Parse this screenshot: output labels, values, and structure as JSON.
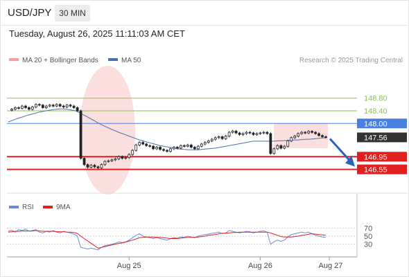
{
  "header": {
    "symbol": "USD/JPY",
    "timeframe": "30 MIN"
  },
  "datetime": "Tuesday, August 26, 2025 11:11:03 AM CET",
  "legend": {
    "ma_bb": "MA 20 + Bollinger Bands",
    "ma50": "MA 50"
  },
  "credit": "Research © 2025 Trading Central",
  "rsi_legend": {
    "rsi": "RSI",
    "ma": "9MA"
  },
  "colors": {
    "resistance": "#8bc34a",
    "pivot": "#4a7fe0",
    "support": "#e02020",
    "price": "#333333",
    "ma50": "#4a6fae",
    "bb": "#f4a0a0",
    "rsi": "#6a8ad8",
    "rsi_ma": "#e02020",
    "arrow": "#2a62b8"
  },
  "chart_data": [
    {
      "type": "line",
      "title": "",
      "ylim": [
        146.3,
        149.1
      ],
      "levels": [
        {
          "value": 148.8,
          "label": "148.80",
          "kind": "resistance"
        },
        {
          "value": 148.4,
          "label": "148.40",
          "kind": "resistance"
        },
        {
          "value": 148.0,
          "label": "148.00",
          "kind": "pivot"
        },
        {
          "value": 147.56,
          "label": "147.56",
          "kind": "last_price"
        },
        {
          "value": 146.95,
          "label": "146.95",
          "kind": "support"
        },
        {
          "value": 146.55,
          "label": "146.55",
          "kind": "support"
        }
      ],
      "x_ticks": [
        "Aug 25",
        "Aug 26",
        "Aug 27"
      ],
      "x_tick_index": [
        35,
        73,
        93
      ],
      "n_bars": 93,
      "close": [
        148.42,
        148.45,
        148.5,
        148.48,
        148.55,
        148.5,
        148.45,
        148.52,
        148.6,
        148.58,
        148.5,
        148.55,
        148.58,
        148.55,
        148.6,
        148.55,
        148.52,
        148.58,
        148.55,
        148.5,
        148.4,
        146.9,
        146.7,
        146.62,
        146.68,
        146.63,
        146.6,
        146.7,
        146.8,
        146.82,
        146.85,
        146.88,
        146.95,
        146.9,
        146.92,
        147.02,
        147.15,
        147.32,
        147.4,
        147.35,
        147.3,
        147.28,
        147.2,
        147.25,
        147.18,
        147.15,
        147.12,
        147.2,
        147.25,
        147.22,
        147.3,
        147.28,
        147.32,
        147.25,
        147.2,
        147.28,
        147.35,
        147.4,
        147.45,
        147.5,
        147.55,
        147.58,
        147.52,
        147.6,
        147.72,
        147.76,
        147.7,
        147.65,
        147.68,
        147.72,
        147.7,
        147.65,
        147.68,
        147.7,
        147.72,
        147.68,
        147.05,
        147.2,
        147.3,
        147.22,
        147.28,
        147.45,
        147.55,
        147.6,
        147.68,
        147.72,
        147.7,
        147.75,
        147.72,
        147.68,
        147.62,
        147.58,
        147.56
      ],
      "ma50": [
        148.05,
        148.09,
        148.13,
        148.17,
        148.2,
        148.24,
        148.27,
        148.3,
        148.33,
        148.36,
        148.38,
        148.4,
        148.42,
        148.44,
        148.45,
        148.46,
        148.46,
        148.45,
        148.43,
        148.41,
        148.38,
        148.32,
        148.26,
        148.2,
        148.14,
        148.08,
        148.02,
        147.96,
        147.91,
        147.86,
        147.81,
        147.77,
        147.72,
        147.68,
        147.64,
        147.6,
        147.56,
        147.52,
        147.48,
        147.45,
        147.42,
        147.39,
        147.36,
        147.33,
        147.3,
        147.28,
        147.26,
        147.24,
        147.22,
        147.2,
        147.19,
        147.18,
        147.17,
        147.17,
        147.17,
        147.17,
        147.18,
        147.19,
        147.2,
        147.21,
        147.22,
        147.24,
        147.26,
        147.28,
        147.3,
        147.32,
        147.34,
        147.36,
        147.38,
        147.4,
        147.42,
        147.44,
        147.44,
        147.44,
        147.44,
        147.44,
        147.44,
        147.44,
        147.45,
        147.45,
        147.46,
        147.46,
        147.47,
        147.48,
        147.48,
        147.49,
        147.5,
        147.5,
        147.51,
        147.52,
        147.53,
        147.54,
        147.55
      ],
      "series": [
        {
          "name": "MA 50"
        }
      ]
    },
    {
      "type": "line",
      "title": "",
      "ylim": [
        0,
        100
      ],
      "y_ticks": [
        70,
        50,
        30
      ],
      "rsi": [
        62,
        65,
        60,
        66,
        64,
        68,
        62,
        64,
        66,
        60,
        58,
        62,
        60,
        64,
        60,
        58,
        62,
        60,
        58,
        55,
        50,
        22,
        20,
        18,
        20,
        18,
        16,
        22,
        26,
        28,
        30,
        32,
        36,
        34,
        36,
        40,
        46,
        52,
        56,
        50,
        48,
        46,
        44,
        46,
        44,
        42,
        40,
        44,
        46,
        45,
        48,
        47,
        50,
        48,
        46,
        50,
        52,
        54,
        55,
        57,
        58,
        60,
        56,
        58,
        64,
        62,
        60,
        58,
        60,
        62,
        61,
        58,
        60,
        62,
        63,
        60,
        30,
        36,
        40,
        37,
        40,
        48,
        54,
        56,
        58,
        60,
        58,
        60,
        56,
        52,
        50,
        48,
        47
      ],
      "rsi_ma": [
        60,
        61,
        62,
        62,
        63,
        63,
        63,
        63,
        64,
        63,
        62,
        62,
        62,
        62,
        61,
        61,
        61,
        60,
        60,
        59,
        57,
        50,
        44,
        38,
        32,
        26,
        20,
        22,
        24,
        26,
        28,
        30,
        32,
        33,
        35,
        38,
        40,
        43,
        46,
        47,
        48,
        48,
        48,
        47,
        47,
        46,
        45,
        44,
        44,
        44,
        45,
        46,
        47,
        47,
        47,
        48,
        49,
        50,
        52,
        53,
        54,
        56,
        57,
        57,
        58,
        59,
        59,
        60,
        60,
        60,
        60,
        60,
        60,
        60,
        60,
        60,
        58,
        55,
        52,
        49,
        48,
        48,
        48,
        49,
        50,
        52,
        53,
        55,
        56,
        55,
        54,
        53,
        52
      ],
      "series": [
        {
          "name": "RSI"
        },
        {
          "name": "9MA"
        }
      ]
    }
  ]
}
